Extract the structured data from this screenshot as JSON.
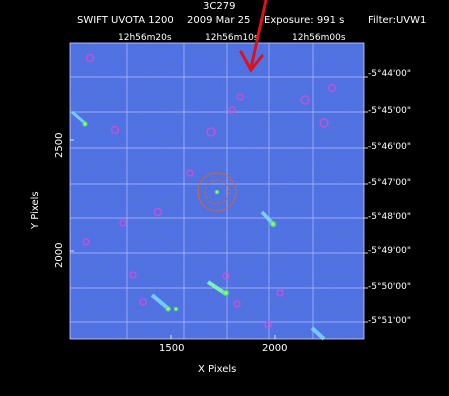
{
  "header": {
    "object": "3C279",
    "line2_left": "SWIFT UVOTA 1200",
    "line2_date": "2009 Mar 25",
    "line2_exposure": "Exposure: 991 s",
    "line2_filter": "Filter:UVW1"
  },
  "ra_ticks": [
    "12h56m20s",
    "12h56m10s",
    "12h56m00s"
  ],
  "dec_ticks": [
    "-5°44'00\"",
    "-5°45'00\"",
    "-5°46'00\"",
    "-5°47'00\"",
    "-5°48'00\"",
    "-5°49'00\"",
    "-5°50'00\"",
    "-5°51'00\""
  ],
  "x_pixel_ticks": [
    "1500",
    "2000"
  ],
  "y_pixel_ticks": [
    "2500",
    "2000"
  ],
  "x_axis_label": "X Pixels",
  "y_axis_label": "Y Pixels",
  "colors": {
    "background": "#000000",
    "image_field": "#1f3fb6",
    "grid": "#c8c8ff",
    "source_circle": "#d64bd6",
    "target_circle": "#e0602a",
    "arrow": "#e0101a"
  }
}
